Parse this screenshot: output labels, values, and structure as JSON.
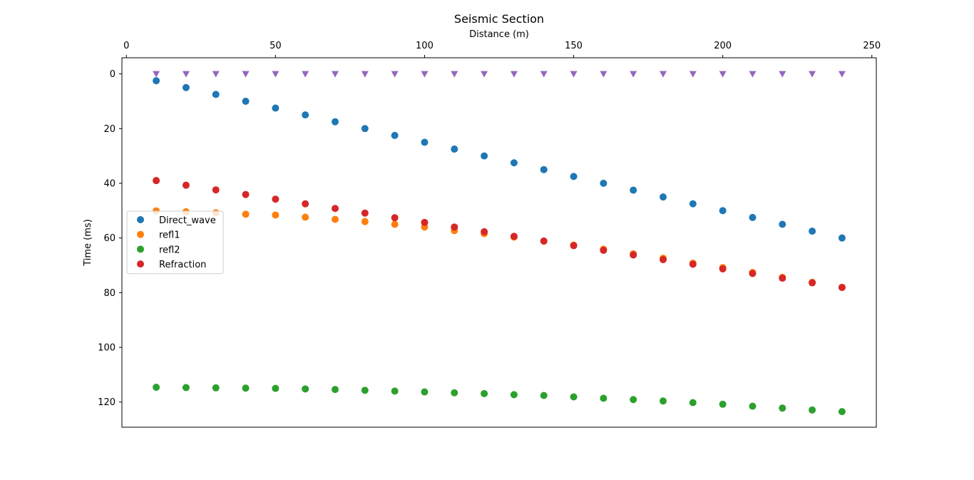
{
  "chart_data": {
    "type": "scatter",
    "title": "Seismic Section",
    "xlabel": "Distance (m)",
    "ylabel": "Time (ms)",
    "xlim": [
      -1.5,
      251.5
    ],
    "ylim": [
      129.2,
      -5.9
    ],
    "y_inverted": true,
    "x_axis_position": "top",
    "x_ticks": [
      0,
      50,
      100,
      150,
      200,
      250
    ],
    "y_ticks": [
      0,
      20,
      40,
      60,
      80,
      100,
      120
    ],
    "grid": false,
    "legend_position": "center-left",
    "x": [
      10,
      20,
      30,
      40,
      50,
      60,
      70,
      80,
      90,
      100,
      110,
      120,
      130,
      140,
      150,
      160,
      170,
      180,
      190,
      200,
      210,
      220,
      230,
      240
    ],
    "series": [
      {
        "name": "Direct_wave",
        "color": "#1f77b4",
        "marker": "circle",
        "values": [
          2.5,
          5.0,
          7.5,
          10.0,
          12.5,
          15.0,
          17.5,
          20.0,
          22.5,
          25.0,
          27.5,
          30.0,
          32.5,
          35.0,
          37.5,
          40.0,
          42.5,
          45.0,
          47.5,
          50.0,
          52.5,
          55.0,
          57.5,
          60.0
        ]
      },
      {
        "name": "refl1",
        "color": "#ff7f0e",
        "marker": "circle",
        "values": [
          50.1,
          50.4,
          50.8,
          51.3,
          51.6,
          52.4,
          53.2,
          54.0,
          55.0,
          56.0,
          57.3,
          58.4,
          59.7,
          61.2,
          62.6,
          64.1,
          65.8,
          67.4,
          69.2,
          70.8,
          72.6,
          74.4,
          76.2,
          78.0
        ]
      },
      {
        "name": "refl2",
        "color": "#2ca02c",
        "marker": "circle",
        "values": [
          114.6,
          114.7,
          114.8,
          114.9,
          115.0,
          115.2,
          115.4,
          115.7,
          116.0,
          116.3,
          116.6,
          116.9,
          117.3,
          117.6,
          118.1,
          118.6,
          119.1,
          119.6,
          120.2,
          120.8,
          121.5,
          122.2,
          122.9,
          123.5
        ]
      },
      {
        "name": "Refraction",
        "color": "#d62728",
        "marker": "circle",
        "values": [
          39.0,
          40.7,
          42.4,
          44.1,
          45.8,
          47.5,
          49.2,
          50.9,
          52.6,
          54.3,
          56.0,
          57.7,
          59.4,
          61.1,
          62.8,
          64.5,
          66.2,
          67.9,
          69.6,
          71.3,
          73.0,
          74.7,
          76.4,
          78.1
        ]
      },
      {
        "name": "",
        "color": "#9467bd",
        "marker": "triangle-down",
        "values": [
          0,
          0,
          0,
          0,
          0,
          0,
          0,
          0,
          0,
          0,
          0,
          0,
          0,
          0,
          0,
          0,
          0,
          0,
          0,
          0,
          0,
          0,
          0,
          0
        ]
      }
    ]
  }
}
